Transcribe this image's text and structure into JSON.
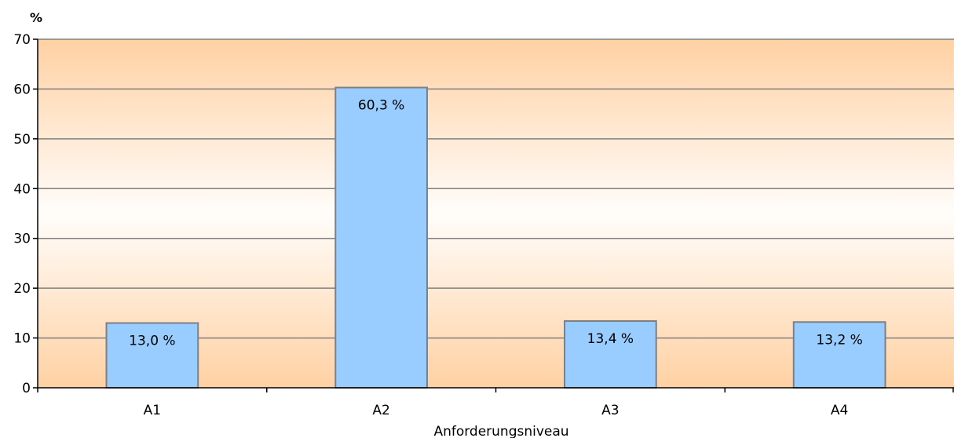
{
  "chart_data": {
    "type": "bar",
    "categories": [
      "A1",
      "A2",
      "A3",
      "A4"
    ],
    "values": [
      13.0,
      60.3,
      13.4,
      13.2
    ],
    "data_labels": [
      "13,0 %",
      "60,3 %",
      "13,4 %",
      "13,2 %"
    ],
    "xlabel": "Anforderungsniveau",
    "ylabel": "%",
    "ylim": [
      0,
      70
    ],
    "yticks": [
      0,
      10,
      20,
      30,
      40,
      50,
      60,
      70
    ],
    "grid": true,
    "colors": {
      "bar_fill": "#99ccff",
      "bar_stroke": "#7f7f7f",
      "plot_bg_edge": "#ffd1a3",
      "plot_bg_center": "#fffdfb",
      "gridline": "#808080",
      "axis": "#000000"
    }
  }
}
